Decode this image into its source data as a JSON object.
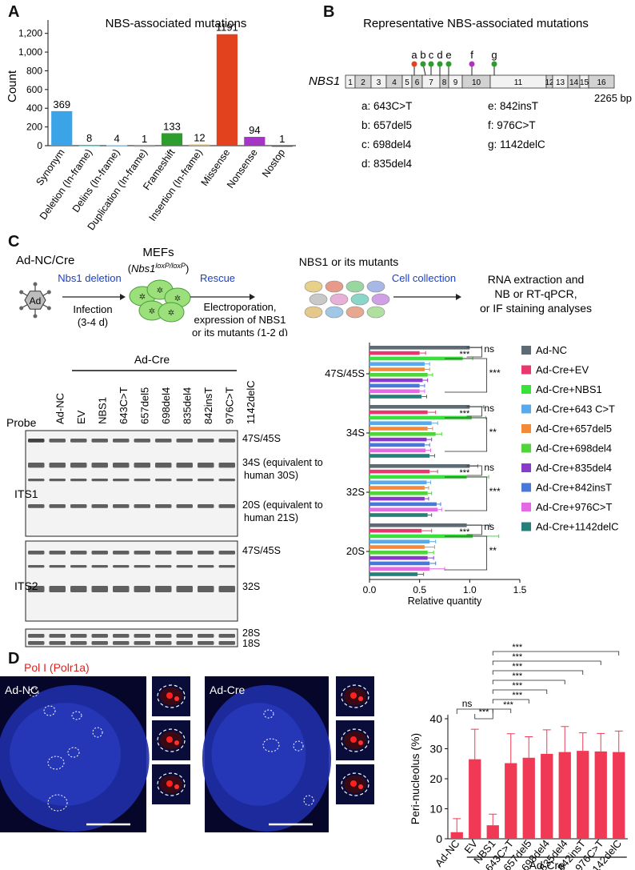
{
  "panels": {
    "a": "A",
    "b": "B",
    "c": "C",
    "d": "D"
  },
  "panel_a": {
    "chart_data": {
      "type": "bar",
      "title": "NBS-associated mutations",
      "ylabel": "Count",
      "xlabel": "",
      "ylim": [
        0,
        1300
      ],
      "yticks": [
        "0",
        "200",
        "400",
        "600",
        "800",
        "1,000",
        "1,200"
      ],
      "ytick_values": [
        0,
        200,
        400,
        600,
        800,
        1000,
        1200
      ],
      "categories": [
        "Synonym",
        "Deletion (In-frame)",
        "Delins (In-frame)",
        "Duplication (In-frame)",
        "Frameshift",
        "Insertion (In-frame)",
        "Missense",
        "Nonsense",
        "Nostop"
      ],
      "values": [
        369,
        8,
        4,
        1,
        133,
        12,
        1191,
        94,
        1
      ],
      "value_labels": [
        "369",
        "8",
        "4",
        "1",
        "133",
        "12",
        "1191",
        "94",
        "1"
      ],
      "colors": [
        "#3ba3e8",
        "#31b5b0",
        "#8fb8d8",
        "#a0a0a0",
        "#2e9d2e",
        "#e0b33d",
        "#e2431e",
        "#a634c6",
        "#555555"
      ]
    }
  },
  "panel_b": {
    "title": "Representative NBS-associated mutations",
    "gene": "NBS1",
    "exons": [
      "1",
      "2",
      "3",
      "4",
      "5",
      "6",
      "7",
      "8",
      "9",
      "10",
      "11",
      "12",
      "13",
      "14",
      "15",
      "16"
    ],
    "length_label": "2265 bp",
    "markers": [
      {
        "letter": "a",
        "color": "#e2431e"
      },
      {
        "letter": "b",
        "color": "#2e9d2e"
      },
      {
        "letter": "c",
        "color": "#2e9d2e"
      },
      {
        "letter": "d",
        "color": "#2e9d2e"
      },
      {
        "letter": "e",
        "color": "#2e9d2e"
      },
      {
        "letter": "f",
        "color": "#b030c0"
      },
      {
        "letter": "g",
        "color": "#2e9d2e"
      }
    ],
    "mutations": [
      {
        "key": "a",
        "text": "a: 643C>T"
      },
      {
        "key": "b",
        "text": "b: 657del5"
      },
      {
        "key": "c",
        "text": "c: 698del4"
      },
      {
        "key": "d",
        "text": "d: 835del4"
      },
      {
        "key": "e",
        "text": "e: 842insT"
      },
      {
        "key": "f",
        "text": "f: 976C>T"
      },
      {
        "key": "g",
        "text": "g: 1142delC"
      }
    ]
  },
  "panel_c": {
    "schematic": {
      "adnc_title": "Ad-NC/Cre",
      "ad_label": "Ad",
      "nbs1_deletion": "Nbs1 deletion",
      "infection": "Infection",
      "infection_time": "(3-4 d)",
      "mefs": "MEFs",
      "mefs_geno_base": "Nbs1",
      "mefs_geno_sup": "loxP/loxP",
      "rescue": "Rescue",
      "electro1": "Electroporation,",
      "electro2": "expression of NBS1",
      "electro3": "or its mutants (1-2 d)",
      "nbs1_mutants": "NBS1 or its mutants",
      "cell_collection": "Cell collection",
      "rna1": "RNA extraction and",
      "rna2": "NB or RT-qPCR,",
      "rna3": "or IF staining analyses"
    },
    "blot": {
      "group_label": "Ad-Cre",
      "probe_label": "Probe",
      "lanes": [
        "Ad-NC",
        "EV",
        "NBS1",
        "643C>T",
        "657del5",
        "698del4",
        "835del4",
        "842insT",
        "976C>T",
        "1142delC"
      ],
      "its1_label": "ITS1",
      "its2_label": "ITS2",
      "its1_bands": [
        "47S/45S",
        "34S (equivalent to",
        "human 30S)",
        "20S (equivalent to",
        "human 21S)"
      ],
      "its2_bands": [
        "47S/45S",
        "32S"
      ],
      "bottom_bands": [
        "28S",
        "18S"
      ]
    },
    "chart_data": {
      "type": "bar",
      "orientation": "horizontal",
      "xlabel": "Relative quantity",
      "xlim": [
        0,
        1.5
      ],
      "xticks": [
        "0.0",
        "0.5",
        "1.0",
        "1.5"
      ],
      "xtick_values": [
        0,
        0.5,
        1.0,
        1.5
      ],
      "categories": [
        "47S/45S",
        "34S",
        "32S",
        "20S"
      ],
      "series": [
        {
          "name": "Ad-NC",
          "color": "#5f6b73",
          "values": [
            1.0,
            1.0,
            1.0,
            0.97
          ],
          "errors": [
            0.12,
            0.14,
            0.08,
            0.23
          ]
        },
        {
          "name": "Ad-Cre+EV",
          "color": "#e8386d",
          "values": [
            0.5,
            0.58,
            0.6,
            0.52
          ],
          "errors": [
            0.06,
            0.08,
            0.08,
            0.1
          ]
        },
        {
          "name": "Ad-Cre+NBS1",
          "color": "#37e23a",
          "values": [
            0.93,
            1.02,
            0.97,
            1.03
          ],
          "errors": [
            0.1,
            0.14,
            0.22,
            0.26
          ]
        },
        {
          "name": "Ad-Cre+643 C>T",
          "color": "#5aa9ea",
          "values": [
            0.55,
            0.62,
            0.57,
            0.6
          ],
          "errors": [
            0.05,
            0.06,
            0.04,
            0.06
          ]
        },
        {
          "name": "Ad-Cre+657del5",
          "color": "#f28a3a",
          "values": [
            0.55,
            0.58,
            0.55,
            0.55
          ],
          "errors": [
            0.05,
            0.05,
            0.04,
            0.1
          ]
        },
        {
          "name": "Ad-Cre+698del4",
          "color": "#4fd43a",
          "values": [
            0.58,
            0.66,
            0.58,
            0.58
          ],
          "errors": [
            0.05,
            0.06,
            0.04,
            0.06
          ]
        },
        {
          "name": "Ad-Cre+835del4",
          "color": "#8a3ac8",
          "values": [
            0.53,
            0.57,
            0.55,
            0.58
          ],
          "errors": [
            0.05,
            0.05,
            0.04,
            0.06
          ]
        },
        {
          "name": "Ad-Cre+842insT",
          "color": "#4a78d8",
          "values": [
            0.5,
            0.55,
            0.67,
            0.6
          ],
          "errors": [
            0.05,
            0.05,
            0.04,
            0.06
          ]
        },
        {
          "name": "Ad-Cre+976C>T",
          "color": "#e36ae3",
          "values": [
            0.5,
            0.56,
            0.68,
            0.6
          ],
          "errors": [
            0.05,
            0.05,
            0.04,
            0.15
          ]
        },
        {
          "name": "Ad-Cre+1142delC",
          "color": "#23807a",
          "values": [
            0.52,
            0.6,
            0.58,
            0.48
          ],
          "errors": [
            0.05,
            0.05,
            0.04,
            0.06
          ]
        }
      ],
      "significance": [
        {
          "category": "47S/45S",
          "ns": "ns",
          "sig1": "***",
          "sig2": "***"
        },
        {
          "category": "34S",
          "ns": "ns",
          "sig1": "***",
          "sig2": "**"
        },
        {
          "category": "32S",
          "ns": "ns",
          "sig1": "***",
          "sig2": "***"
        },
        {
          "category": "20S",
          "ns": "ns",
          "sig1": "***",
          "sig2": "**"
        }
      ]
    }
  },
  "panel_d": {
    "title": "Pol I (Polr1a)",
    "image_left_label": "Ad-NC",
    "image_right_label": "Ad-Cre",
    "chart_data": {
      "type": "bar",
      "ylabel": "Peri-nucleolus (%)",
      "xlabel": "",
      "ylim": [
        0,
        40
      ],
      "yticks": [
        "0",
        "10",
        "20",
        "30",
        "40"
      ],
      "ytick_values": [
        0,
        10,
        20,
        30,
        40
      ],
      "categories": [
        "Ad-NC",
        "EV",
        "NBS1",
        "643C>T",
        "657del5",
        "698del4",
        "835del4",
        "842insT",
        "976C>T",
        "1142delC"
      ],
      "values": [
        2.2,
        26.5,
        4.5,
        25.2,
        27,
        28.3,
        28.9,
        29.3,
        29.1,
        28.9
      ],
      "errors": [
        4.5,
        10,
        3.7,
        9.8,
        7,
        8,
        8.5,
        6,
        6,
        7
      ],
      "color": "#f03a55",
      "group_label": "Ad-Cre",
      "significance": [
        {
          "label": "ns"
        },
        {
          "label": "***"
        },
        {
          "label": "***"
        },
        {
          "label": "***"
        },
        {
          "label": "***"
        },
        {
          "label": "***"
        },
        {
          "label": "***"
        },
        {
          "label": "***"
        },
        {
          "label": "***"
        },
        {
          "label": "***"
        }
      ]
    }
  }
}
